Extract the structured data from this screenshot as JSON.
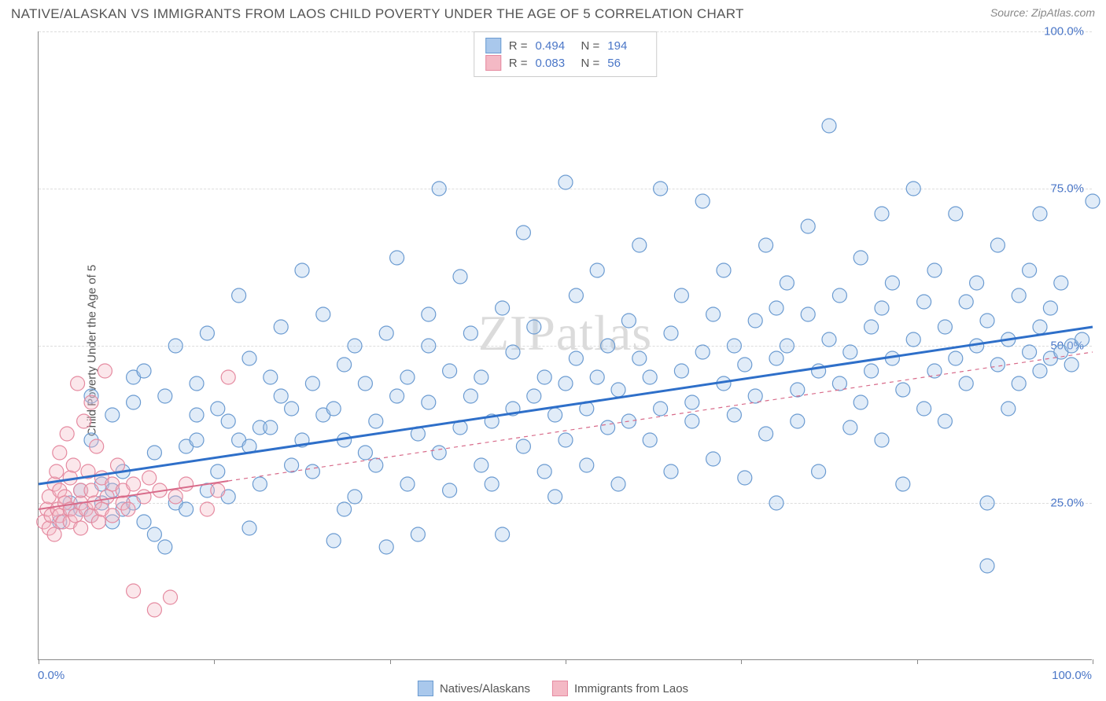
{
  "header": {
    "title": "NATIVE/ALASKAN VS IMMIGRANTS FROM LAOS CHILD POVERTY UNDER THE AGE OF 5 CORRELATION CHART",
    "source_prefix": "Source: ",
    "source": "ZipAtlas.com"
  },
  "chart": {
    "type": "scatter",
    "ylabel": "Child Poverty Under the Age of 5",
    "xlim": [
      0,
      100
    ],
    "ylim": [
      0,
      100
    ],
    "xtick_positions": [
      0,
      16.67,
      33.33,
      50,
      66.67,
      83.33,
      100
    ],
    "ytick_positions": [
      25,
      50,
      75,
      100
    ],
    "ytick_labels": [
      "25.0%",
      "50.0%",
      "75.0%",
      "100.0%"
    ],
    "xtick_label_left": "0.0%",
    "xtick_label_right": "100.0%",
    "grid_color": "#dddddd",
    "axis_color": "#888888",
    "background_color": "#ffffff",
    "watermark": "ZIPatlas",
    "marker_radius": 9,
    "marker_stroke_width": 1.2,
    "marker_fill_opacity": 0.35,
    "series": [
      {
        "name": "Natives/Alaskans",
        "color_fill": "#a9c8ec",
        "color_stroke": "#6b9bd1",
        "trend_color": "#2e6fc9",
        "trend_dash": "none",
        "trend_width": 3,
        "R": "0.494",
        "N": "194",
        "trend": {
          "x1": 0,
          "y1": 28,
          "x2": 100,
          "y2": 53
        },
        "points": [
          [
            2,
            22
          ],
          [
            3,
            25
          ],
          [
            3,
            24
          ],
          [
            4,
            27
          ],
          [
            4,
            24
          ],
          [
            5,
            35
          ],
          [
            5,
            23
          ],
          [
            5,
            42
          ],
          [
            6,
            25
          ],
          [
            6,
            28
          ],
          [
            7,
            22
          ],
          [
            7,
            39
          ],
          [
            7,
            27
          ],
          [
            8,
            30
          ],
          [
            8,
            24
          ],
          [
            9,
            25
          ],
          [
            9,
            41
          ],
          [
            9,
            45
          ],
          [
            10,
            22
          ],
          [
            10,
            46
          ],
          [
            11,
            20
          ],
          [
            11,
            33
          ],
          [
            12,
            18
          ],
          [
            12,
            42
          ],
          [
            13,
            25
          ],
          [
            13,
            50
          ],
          [
            14,
            24
          ],
          [
            14,
            34
          ],
          [
            15,
            35
          ],
          [
            15,
            44
          ],
          [
            15,
            39
          ],
          [
            16,
            27
          ],
          [
            16,
            52
          ],
          [
            17,
            30
          ],
          [
            17,
            40
          ],
          [
            18,
            26
          ],
          [
            18,
            38
          ],
          [
            19,
            35
          ],
          [
            19,
            58
          ],
          [
            20,
            21
          ],
          [
            20,
            34
          ],
          [
            20,
            48
          ],
          [
            21,
            37
          ],
          [
            21,
            28
          ],
          [
            22,
            37
          ],
          [
            22,
            45
          ],
          [
            23,
            42
          ],
          [
            23,
            53
          ],
          [
            24,
            31
          ],
          [
            24,
            40
          ],
          [
            25,
            62
          ],
          [
            25,
            35
          ],
          [
            26,
            44
          ],
          [
            26,
            30
          ],
          [
            27,
            39
          ],
          [
            27,
            55
          ],
          [
            28,
            19
          ],
          [
            28,
            40
          ],
          [
            29,
            47
          ],
          [
            29,
            35
          ],
          [
            29,
            24
          ],
          [
            30,
            26
          ],
          [
            30,
            50
          ],
          [
            31,
            33
          ],
          [
            31,
            44
          ],
          [
            32,
            38
          ],
          [
            32,
            31
          ],
          [
            33,
            18
          ],
          [
            33,
            52
          ],
          [
            34,
            64
          ],
          [
            34,
            42
          ],
          [
            35,
            28
          ],
          [
            35,
            45
          ],
          [
            36,
            36
          ],
          [
            36,
            20
          ],
          [
            37,
            50
          ],
          [
            37,
            41
          ],
          [
            37,
            55
          ],
          [
            38,
            75
          ],
          [
            38,
            33
          ],
          [
            39,
            46
          ],
          [
            39,
            27
          ],
          [
            40,
            37
          ],
          [
            40,
            61
          ],
          [
            41,
            42
          ],
          [
            41,
            52
          ],
          [
            42,
            31
          ],
          [
            42,
            45
          ],
          [
            43,
            38
          ],
          [
            43,
            28
          ],
          [
            44,
            56
          ],
          [
            44,
            20
          ],
          [
            45,
            40
          ],
          [
            45,
            49
          ],
          [
            46,
            34
          ],
          [
            46,
            68
          ],
          [
            47,
            42
          ],
          [
            47,
            53
          ],
          [
            48,
            30
          ],
          [
            48,
            45
          ],
          [
            49,
            39
          ],
          [
            49,
            26
          ],
          [
            50,
            76
          ],
          [
            50,
            44
          ],
          [
            50,
            35
          ],
          [
            51,
            48
          ],
          [
            51,
            58
          ],
          [
            52,
            40
          ],
          [
            52,
            31
          ],
          [
            53,
            62
          ],
          [
            53,
            45
          ],
          [
            54,
            37
          ],
          [
            54,
            50
          ],
          [
            55,
            28
          ],
          [
            55,
            43
          ],
          [
            56,
            38
          ],
          [
            56,
            54
          ],
          [
            57,
            48
          ],
          [
            57,
            66
          ],
          [
            58,
            35
          ],
          [
            58,
            45
          ],
          [
            59,
            75
          ],
          [
            59,
            40
          ],
          [
            60,
            52
          ],
          [
            60,
            30
          ],
          [
            61,
            46
          ],
          [
            61,
            58
          ],
          [
            62,
            41
          ],
          [
            62,
            38
          ],
          [
            63,
            73
          ],
          [
            63,
            49
          ],
          [
            64,
            55
          ],
          [
            64,
            32
          ],
          [
            65,
            44
          ],
          [
            65,
            62
          ],
          [
            66,
            39
          ],
          [
            66,
            50
          ],
          [
            67,
            47
          ],
          [
            67,
            29
          ],
          [
            68,
            54
          ],
          [
            68,
            42
          ],
          [
            69,
            66
          ],
          [
            69,
            36
          ],
          [
            70,
            48
          ],
          [
            70,
            25
          ],
          [
            70,
            56
          ],
          [
            71,
            50
          ],
          [
            71,
            60
          ],
          [
            72,
            43
          ],
          [
            72,
            38
          ],
          [
            73,
            55
          ],
          [
            73,
            69
          ],
          [
            74,
            46
          ],
          [
            74,
            30
          ],
          [
            75,
            85
          ],
          [
            75,
            51
          ],
          [
            76,
            44
          ],
          [
            76,
            58
          ],
          [
            77,
            37
          ],
          [
            77,
            49
          ],
          [
            78,
            64
          ],
          [
            78,
            41
          ],
          [
            79,
            53
          ],
          [
            79,
            46
          ],
          [
            80,
            71
          ],
          [
            80,
            35
          ],
          [
            80,
            56
          ],
          [
            81,
            48
          ],
          [
            81,
            60
          ],
          [
            82,
            43
          ],
          [
            82,
            28
          ],
          [
            83,
            75
          ],
          [
            83,
            51
          ],
          [
            84,
            57
          ],
          [
            84,
            40
          ],
          [
            85,
            62
          ],
          [
            85,
            46
          ],
          [
            86,
            53
          ],
          [
            86,
            38
          ],
          [
            87,
            71
          ],
          [
            87,
            48
          ],
          [
            88,
            57
          ],
          [
            88,
            44
          ],
          [
            89,
            60
          ],
          [
            89,
            50
          ],
          [
            90,
            25
          ],
          [
            90,
            54
          ],
          [
            90,
            15
          ],
          [
            91,
            47
          ],
          [
            91,
            66
          ],
          [
            92,
            51
          ],
          [
            92,
            40
          ],
          [
            93,
            58
          ],
          [
            93,
            44
          ],
          [
            94,
            62
          ],
          [
            94,
            49
          ],
          [
            95,
            71
          ],
          [
            95,
            53
          ],
          [
            95,
            46
          ],
          [
            96,
            56
          ],
          [
            96,
            48
          ],
          [
            97,
            49
          ],
          [
            97,
            60
          ],
          [
            98,
            50
          ],
          [
            98,
            47
          ],
          [
            99,
            51
          ],
          [
            100,
            73
          ]
        ]
      },
      {
        "name": "Immigrants from Laos",
        "color_fill": "#f4b9c5",
        "color_stroke": "#e58aa0",
        "trend_color": "#d86b8a",
        "trend_dash": "solid_then_dash",
        "trend_width": 2,
        "R": "0.083",
        "N": "56",
        "trend": {
          "x1": 0,
          "y1": 24,
          "x2": 100,
          "y2": 49
        },
        "solid_until_x": 18,
        "points": [
          [
            0.5,
            22
          ],
          [
            0.8,
            24
          ],
          [
            1,
            21
          ],
          [
            1,
            26
          ],
          [
            1.2,
            23
          ],
          [
            1.5,
            28
          ],
          [
            1.5,
            20
          ],
          [
            1.7,
            30
          ],
          [
            1.8,
            24
          ],
          [
            2,
            23
          ],
          [
            2,
            27
          ],
          [
            2,
            33
          ],
          [
            2.3,
            22
          ],
          [
            2.5,
            26
          ],
          [
            2.5,
            25
          ],
          [
            2.7,
            36
          ],
          [
            3,
            24
          ],
          [
            3,
            29
          ],
          [
            3,
            22
          ],
          [
            3.3,
            31
          ],
          [
            3.5,
            23
          ],
          [
            3.7,
            44
          ],
          [
            4,
            25
          ],
          [
            4,
            27
          ],
          [
            4,
            21
          ],
          [
            4.3,
            38
          ],
          [
            4.5,
            24
          ],
          [
            4.7,
            30
          ],
          [
            5,
            41
          ],
          [
            5,
            23
          ],
          [
            5,
            27
          ],
          [
            5.3,
            25
          ],
          [
            5.5,
            34
          ],
          [
            5.7,
            22
          ],
          [
            6,
            29
          ],
          [
            6,
            24
          ],
          [
            6.3,
            46
          ],
          [
            6.5,
            26
          ],
          [
            7,
            28
          ],
          [
            7,
            23
          ],
          [
            7.5,
            31
          ],
          [
            8,
            25
          ],
          [
            8,
            27
          ],
          [
            8.5,
            24
          ],
          [
            9,
            11
          ],
          [
            9,
            28
          ],
          [
            10,
            26
          ],
          [
            10.5,
            29
          ],
          [
            11,
            8
          ],
          [
            11.5,
            27
          ],
          [
            12.5,
            10
          ],
          [
            13,
            26
          ],
          [
            14,
            28
          ],
          [
            16,
            24
          ],
          [
            17,
            27
          ],
          [
            18,
            45
          ]
        ]
      }
    ],
    "bottom_legend": [
      {
        "label": "Natives/Alaskans",
        "fill": "#a9c8ec",
        "stroke": "#6b9bd1"
      },
      {
        "label": "Immigrants from Laos",
        "fill": "#f4b9c5",
        "stroke": "#e58aa0"
      }
    ]
  }
}
